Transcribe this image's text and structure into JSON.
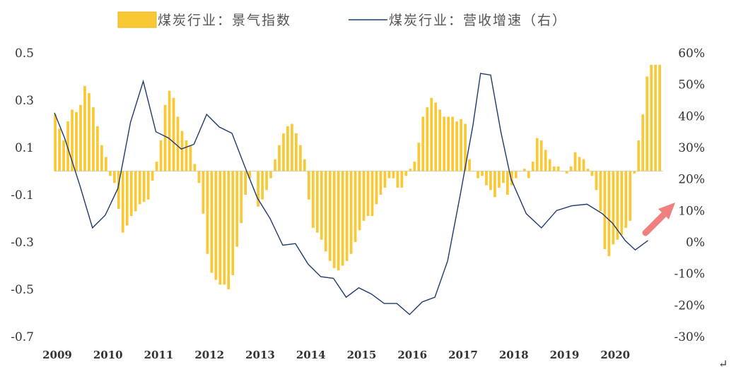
{
  "chart_data": {
    "type": "bar+line",
    "legend": {
      "bar_label": "煤炭行业：景气指数",
      "line_label": "煤炭行业：营收增速（右）",
      "placement": "top"
    },
    "colors": {
      "bar": "#f9c935",
      "line": "#1f3a6e",
      "arrow": "#f08080",
      "zero_line": "#d0d0d0"
    },
    "left_axis": {
      "ylim": [
        -0.7,
        0.5
      ],
      "ticks": [
        0.5,
        0.3,
        0.1,
        -0.1,
        -0.3,
        -0.5,
        -0.7
      ],
      "tick_labels": [
        "0.5",
        "0.3",
        "0.1",
        "-0.1",
        "-0.3",
        "-0.5",
        "-0.7"
      ]
    },
    "right_axis": {
      "ylim": [
        -30,
        60
      ],
      "ticks": [
        60,
        50,
        40,
        30,
        20,
        10,
        0,
        -10,
        -20,
        -30
      ],
      "tick_labels": [
        "60%",
        "50%",
        "40%",
        "30%",
        "20%",
        "10%",
        "0%",
        "-10%",
        "-20%",
        "-30%"
      ]
    },
    "x_axis": {
      "range": [
        2009.0,
        2021.0
      ],
      "tick_values": [
        2009,
        2010,
        2011,
        2012,
        2013,
        2014,
        2015,
        2016,
        2017,
        2018,
        2019,
        2020
      ],
      "tick_labels": [
        "2009",
        "2010",
        "2011",
        "2012",
        "2013",
        "2014",
        "2015",
        "2016",
        "2017",
        "2018",
        "2019",
        "2020"
      ]
    },
    "bar_series": {
      "name": "煤炭行业：景气指数",
      "start": 2009.0,
      "step": 0.08333,
      "values": [
        0.24,
        0.18,
        0.13,
        0.21,
        0.26,
        0.25,
        0.28,
        0.36,
        0.33,
        0.27,
        0.19,
        0.11,
        0.06,
        -0.02,
        -0.05,
        -0.16,
        -0.26,
        -0.23,
        -0.19,
        -0.17,
        -0.14,
        -0.13,
        -0.12,
        -0.04,
        0.04,
        0.13,
        0.28,
        0.34,
        0.31,
        0.23,
        0.17,
        0.13,
        0.11,
        0.03,
        -0.05,
        -0.18,
        -0.35,
        -0.43,
        -0.46,
        -0.48,
        -0.48,
        -0.5,
        -0.44,
        -0.32,
        -0.22,
        -0.1,
        -0.03,
        0.0,
        -0.15,
        -0.12,
        -0.08,
        -0.03,
        0.05,
        0.11,
        0.16,
        0.19,
        0.2,
        0.16,
        0.11,
        0.05,
        -0.12,
        -0.24,
        -0.26,
        -0.29,
        -0.34,
        -0.38,
        -0.41,
        -0.42,
        -0.4,
        -0.38,
        -0.35,
        -0.3,
        -0.25,
        -0.21,
        -0.19,
        -0.19,
        -0.14,
        -0.1,
        -0.07,
        -0.03,
        -0.03,
        -0.07,
        -0.07,
        -0.02,
        0.01,
        0.04,
        0.12,
        0.23,
        0.27,
        0.31,
        0.29,
        0.26,
        0.23,
        0.23,
        0.23,
        0.21,
        0.22,
        0.2,
        0.05,
        0.0,
        -0.03,
        -0.02,
        -0.06,
        -0.08,
        -0.11,
        -0.07,
        -0.05,
        -0.1,
        -0.06,
        -0.03,
        0.0,
        0.01,
        -0.03,
        0.04,
        0.14,
        0.13,
        0.09,
        0.05,
        0.02,
        0.02,
        0.0,
        -0.01,
        0.02,
        0.08,
        0.06,
        0.05,
        0.01,
        -0.02,
        -0.08,
        -0.17,
        -0.33,
        -0.36,
        -0.31,
        -0.29,
        -0.27,
        -0.24,
        -0.21,
        -0.01,
        0.13,
        0.24,
        0.4,
        0.45,
        0.45,
        0.45
      ]
    },
    "line_series": {
      "name": "煤炭行业：营收增速（右）",
      "points": [
        [
          2009.0,
          41
        ],
        [
          2009.2,
          33
        ],
        [
          2009.5,
          18
        ],
        [
          2009.75,
          4.5
        ],
        [
          2010.0,
          8.5
        ],
        [
          2010.25,
          17
        ],
        [
          2010.5,
          38
        ],
        [
          2010.75,
          51
        ],
        [
          2011.0,
          35
        ],
        [
          2011.25,
          33
        ],
        [
          2011.5,
          29.5
        ],
        [
          2011.75,
          31
        ],
        [
          2012.0,
          40.5
        ],
        [
          2012.25,
          36.5
        ],
        [
          2012.5,
          34.5
        ],
        [
          2012.75,
          24
        ],
        [
          2013.0,
          14
        ],
        [
          2013.25,
          7.5
        ],
        [
          2013.5,
          -1
        ],
        [
          2013.75,
          -0.5
        ],
        [
          2014.0,
          -7
        ],
        [
          2014.25,
          -11
        ],
        [
          2014.5,
          -11.5
        ],
        [
          2014.75,
          -17.5
        ],
        [
          2015.0,
          -14.5
        ],
        [
          2015.25,
          -16.5
        ],
        [
          2015.5,
          -19.5
        ],
        [
          2015.75,
          -19.5
        ],
        [
          2016.0,
          -23
        ],
        [
          2016.25,
          -19
        ],
        [
          2016.5,
          -17.5
        ],
        [
          2016.75,
          -6
        ],
        [
          2017.0,
          15
        ],
        [
          2017.25,
          37
        ],
        [
          2017.4,
          53.5
        ],
        [
          2017.6,
          53
        ],
        [
          2017.8,
          35
        ],
        [
          2018.0,
          20
        ],
        [
          2018.3,
          9
        ],
        [
          2018.6,
          4.5
        ],
        [
          2018.9,
          10
        ],
        [
          2019.2,
          11.5
        ],
        [
          2019.5,
          12
        ],
        [
          2019.8,
          9
        ],
        [
          2020.0,
          6
        ],
        [
          2020.25,
          0.5
        ],
        [
          2020.45,
          -2.5
        ],
        [
          2020.7,
          0.5
        ]
      ]
    },
    "annotation": {
      "type": "arrow",
      "direction": "up-right",
      "meaning": "rising trend"
    }
  }
}
